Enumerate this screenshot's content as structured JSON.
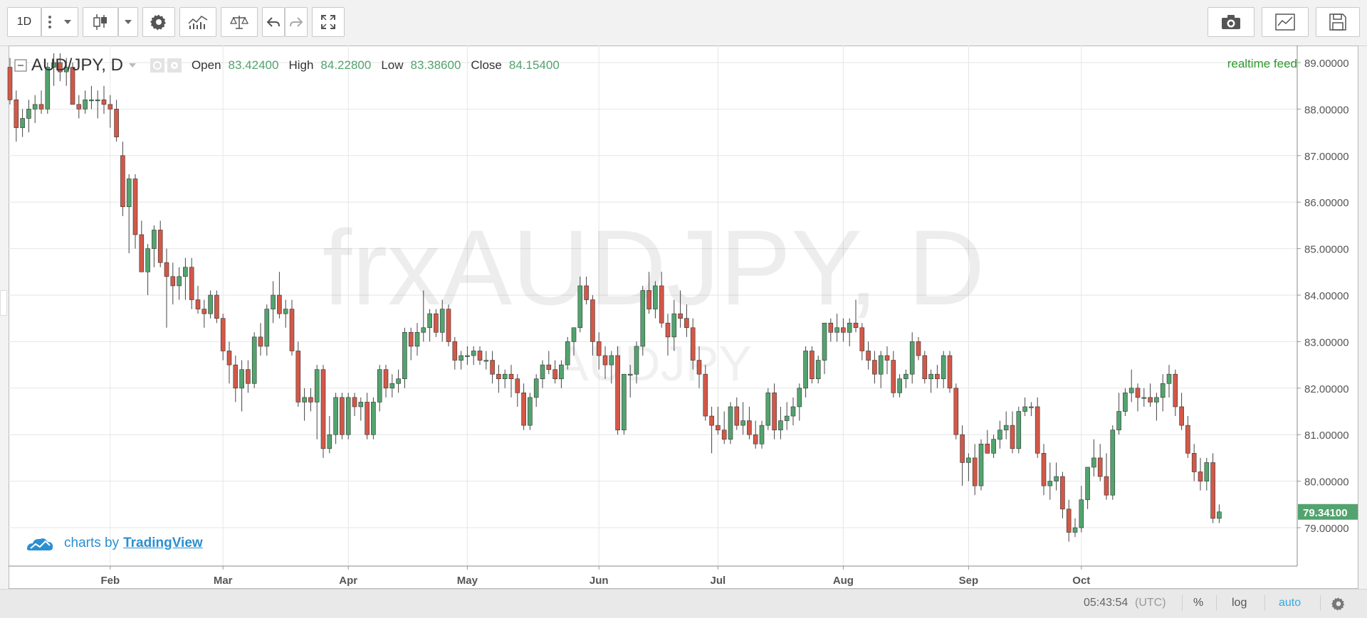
{
  "toolbar": {
    "interval_label": "1D",
    "icons": [
      "more-icon",
      "dropdown-icon",
      "candles-icon",
      "dropdown-icon",
      "gear-icon",
      "indicators-icon",
      "compare-icon",
      "undo-icon",
      "redo-icon",
      "fullscreen-icon",
      "camera-icon",
      "chart-icon",
      "save-icon"
    ]
  },
  "legend": {
    "symbol": "AUD/JPY, D",
    "open_label": "Open",
    "open_value": "83.42400",
    "high_label": "High",
    "high_value": "84.22800",
    "low_label": "Low",
    "low_value": "83.38600",
    "close_label": "Close",
    "close_value": "84.15400"
  },
  "watermark": {
    "main": "frxAUDJPY, D",
    "sub": "AUDJPY"
  },
  "realtime_label": "realtime feed",
  "branding": {
    "prefix": "charts by",
    "brand": "TradingView"
  },
  "last_price_label": "79.34100",
  "bottom_bar": {
    "time": "05:43:54",
    "tz": "(UTC)",
    "percent": "%",
    "log": "log",
    "auto": "auto"
  },
  "colors": {
    "up": "#53a36f",
    "down": "#d35848",
    "accent": "#2b8fd0",
    "realtime": "#2c9b2c"
  },
  "chart_data": {
    "type": "candlestick",
    "title": "AUD/JPY, D",
    "ylim": [
      78.2,
      89.3
    ],
    "y_ticks": [
      "89.00000",
      "88.00000",
      "87.00000",
      "86.00000",
      "85.00000",
      "84.00000",
      "83.00000",
      "82.00000",
      "81.00000",
      "80.00000",
      "79.00000"
    ],
    "y_tick_values": [
      89,
      88,
      87,
      86,
      85,
      84,
      83,
      82,
      81,
      80,
      79
    ],
    "x_tick_labels": [
      "Feb",
      "Mar",
      "Apr",
      "May",
      "Jun",
      "Jul",
      "Aug",
      "Sep",
      "Oct"
    ],
    "x_tick_index": [
      16,
      34,
      54,
      73,
      94,
      113,
      133,
      153,
      171
    ],
    "grid": true,
    "candles": [
      [
        88.9,
        89.1,
        88.1,
        88.2
      ],
      [
        88.2,
        88.4,
        87.3,
        87.6
      ],
      [
        87.6,
        88.0,
        87.4,
        87.8
      ],
      [
        87.8,
        88.2,
        87.5,
        88.0
      ],
      [
        88.0,
        88.3,
        87.7,
        88.1
      ],
      [
        88.1,
        88.4,
        87.9,
        88.0
      ],
      [
        88.0,
        89.0,
        87.9,
        88.9
      ],
      [
        88.9,
        89.2,
        88.5,
        89.0
      ],
      [
        89.0,
        89.2,
        88.6,
        88.8
      ],
      [
        88.8,
        89.1,
        88.5,
        88.9
      ],
      [
        88.9,
        89.0,
        88.2,
        88.1
      ],
      [
        88.1,
        88.3,
        87.8,
        88.0
      ],
      [
        88.0,
        88.4,
        87.9,
        88.2
      ],
      [
        88.2,
        88.5,
        88.0,
        88.2
      ],
      [
        88.2,
        88.4,
        87.8,
        88.2
      ],
      [
        88.2,
        88.5,
        87.9,
        88.1
      ],
      [
        88.1,
        88.3,
        87.6,
        88.0
      ],
      [
        88.0,
        88.2,
        87.3,
        87.4
      ],
      [
        87.0,
        87.3,
        85.7,
        85.9
      ],
      [
        85.9,
        86.6,
        84.9,
        86.5
      ],
      [
        86.5,
        86.6,
        85.0,
        85.3
      ],
      [
        85.3,
        85.6,
        84.5,
        84.5
      ],
      [
        84.5,
        85.1,
        84.0,
        85.0
      ],
      [
        85.0,
        85.5,
        84.6,
        85.4
      ],
      [
        85.4,
        85.6,
        84.6,
        84.7
      ],
      [
        84.7,
        85.0,
        83.3,
        84.4
      ],
      [
        84.4,
        84.7,
        83.8,
        84.2
      ],
      [
        84.2,
        84.6,
        83.9,
        84.4
      ],
      [
        84.4,
        84.8,
        83.9,
        84.6
      ],
      [
        84.6,
        84.8,
        83.7,
        83.9
      ],
      [
        83.9,
        84.2,
        83.6,
        83.7
      ],
      [
        83.7,
        83.9,
        83.3,
        83.6
      ],
      [
        83.6,
        84.1,
        83.5,
        84.0
      ],
      [
        84.0,
        84.1,
        83.4,
        83.5
      ],
      [
        83.5,
        83.6,
        82.6,
        82.8
      ],
      [
        82.8,
        83.0,
        82.1,
        82.5
      ],
      [
        82.5,
        82.7,
        81.7,
        82.0
      ],
      [
        82.0,
        82.6,
        81.5,
        82.4
      ],
      [
        82.4,
        82.6,
        81.9,
        82.1
      ],
      [
        82.1,
        83.2,
        82.0,
        83.1
      ],
      [
        83.1,
        83.4,
        82.7,
        82.9
      ],
      [
        82.9,
        83.8,
        82.7,
        83.7
      ],
      [
        83.7,
        84.3,
        83.4,
        84.0
      ],
      [
        84.0,
        84.5,
        83.5,
        83.6
      ],
      [
        83.6,
        83.9,
        83.3,
        83.7
      ],
      [
        83.7,
        83.9,
        82.7,
        82.8
      ],
      [
        82.8,
        83.0,
        81.6,
        81.7
      ],
      [
        81.7,
        82.0,
        81.3,
        81.8
      ],
      [
        81.8,
        82.0,
        81.5,
        81.7
      ],
      [
        81.7,
        82.5,
        80.9,
        82.4
      ],
      [
        82.4,
        82.5,
        80.5,
        80.7
      ],
      [
        80.7,
        81.4,
        80.6,
        81.0
      ],
      [
        81.0,
        81.9,
        80.8,
        81.8
      ],
      [
        81.8,
        81.9,
        80.9,
        81.0
      ],
      [
        81.0,
        81.9,
        80.9,
        81.8
      ],
      [
        81.8,
        81.9,
        81.4,
        81.6
      ],
      [
        81.6,
        81.8,
        81.3,
        81.7
      ],
      [
        81.7,
        81.9,
        80.9,
        81.0
      ],
      [
        81.0,
        81.8,
        80.9,
        81.7
      ],
      [
        81.7,
        82.5,
        81.5,
        82.4
      ],
      [
        82.4,
        82.5,
        81.8,
        82.0
      ],
      [
        82.0,
        82.3,
        81.8,
        82.1
      ],
      [
        82.1,
        82.4,
        81.9,
        82.2
      ],
      [
        82.2,
        83.3,
        82.0,
        83.2
      ],
      [
        83.2,
        83.3,
        82.6,
        82.9
      ],
      [
        82.9,
        83.4,
        82.7,
        83.2
      ],
      [
        83.2,
        84.1,
        83.0,
        83.3
      ],
      [
        83.3,
        83.7,
        83.0,
        83.6
      ],
      [
        83.6,
        83.7,
        83.1,
        83.2
      ],
      [
        83.2,
        83.9,
        83.0,
        83.7
      ],
      [
        83.7,
        83.8,
        82.9,
        83.0
      ],
      [
        83.0,
        83.1,
        82.4,
        82.6
      ],
      [
        82.6,
        82.8,
        82.4,
        82.7
      ],
      [
        82.7,
        82.9,
        82.5,
        82.7
      ],
      [
        82.7,
        82.9,
        82.5,
        82.8
      ],
      [
        82.8,
        82.9,
        82.5,
        82.6
      ],
      [
        82.6,
        82.8,
        82.4,
        82.6
      ],
      [
        82.6,
        82.8,
        82.1,
        82.3
      ],
      [
        82.3,
        82.5,
        81.9,
        82.2
      ],
      [
        82.2,
        82.4,
        82.0,
        82.3
      ],
      [
        82.3,
        82.5,
        81.8,
        82.2
      ],
      [
        82.2,
        82.3,
        81.6,
        81.9
      ],
      [
        81.9,
        82.1,
        81.1,
        81.2
      ],
      [
        81.2,
        81.9,
        81.1,
        81.8
      ],
      [
        81.8,
        82.3,
        81.6,
        82.2
      ],
      [
        82.2,
        82.6,
        82.0,
        82.5
      ],
      [
        82.5,
        82.8,
        82.3,
        82.4
      ],
      [
        82.4,
        82.6,
        82.1,
        82.2
      ],
      [
        82.2,
        82.6,
        82.0,
        82.5
      ],
      [
        82.5,
        83.1,
        82.4,
        83.0
      ],
      [
        83.0,
        83.3,
        82.7,
        83.3
      ],
      [
        83.3,
        84.4,
        83.2,
        84.2
      ],
      [
        84.2,
        84.4,
        83.8,
        83.9
      ],
      [
        83.9,
        84.0,
        82.7,
        83.0
      ],
      [
        83.0,
        83.2,
        82.4,
        82.7
      ],
      [
        82.7,
        82.9,
        82.2,
        82.5
      ],
      [
        82.5,
        82.8,
        82.1,
        82.7
      ],
      [
        82.7,
        82.9,
        81.0,
        81.1
      ],
      [
        81.1,
        82.3,
        81.0,
        82.3
      ],
      [
        82.3,
        82.5,
        81.8,
        82.3
      ],
      [
        82.3,
        83.0,
        82.1,
        82.9
      ],
      [
        82.9,
        84.2,
        82.7,
        84.1
      ],
      [
        84.1,
        84.5,
        83.6,
        83.7
      ],
      [
        83.7,
        84.3,
        83.5,
        84.2
      ],
      [
        84.2,
        84.5,
        83.3,
        83.4
      ],
      [
        83.4,
        83.6,
        82.7,
        83.1
      ],
      [
        83.1,
        83.9,
        82.8,
        83.6
      ],
      [
        83.6,
        84.1,
        83.3,
        83.5
      ],
      [
        83.5,
        83.8,
        83.1,
        83.3
      ],
      [
        83.3,
        83.5,
        82.4,
        82.6
      ],
      [
        82.6,
        82.9,
        82.0,
        82.3
      ],
      [
        82.3,
        82.5,
        81.3,
        81.4
      ],
      [
        81.4,
        81.6,
        80.6,
        81.2
      ],
      [
        81.2,
        81.6,
        81.0,
        81.1
      ],
      [
        81.1,
        81.5,
        80.8,
        80.9
      ],
      [
        80.9,
        81.7,
        80.8,
        81.6
      ],
      [
        81.6,
        81.8,
        81.1,
        81.2
      ],
      [
        81.2,
        81.7,
        81.0,
        81.3
      ],
      [
        81.3,
        81.6,
        80.9,
        81.0
      ],
      [
        81.0,
        81.3,
        80.7,
        80.8
      ],
      [
        80.8,
        81.3,
        80.7,
        81.2
      ],
      [
        81.2,
        82.0,
        81.1,
        81.9
      ],
      [
        81.9,
        82.1,
        80.9,
        81.1
      ],
      [
        81.1,
        81.6,
        80.9,
        81.3
      ],
      [
        81.3,
        81.7,
        81.1,
        81.4
      ],
      [
        81.4,
        81.8,
        81.2,
        81.6
      ],
      [
        81.6,
        82.1,
        81.3,
        82.0
      ],
      [
        82.0,
        82.9,
        81.8,
        82.8
      ],
      [
        82.8,
        82.9,
        82.1,
        82.2
      ],
      [
        82.2,
        82.7,
        82.1,
        82.6
      ],
      [
        82.6,
        83.4,
        82.3,
        83.4
      ],
      [
        83.4,
        83.5,
        83.0,
        83.2
      ],
      [
        83.2,
        83.6,
        83.0,
        83.3
      ],
      [
        83.3,
        83.5,
        83.0,
        83.2
      ],
      [
        83.2,
        83.5,
        82.9,
        83.4
      ],
      [
        83.4,
        83.9,
        83.2,
        83.3
      ],
      [
        83.3,
        83.4,
        82.6,
        82.8
      ],
      [
        82.8,
        83.0,
        82.4,
        82.6
      ],
      [
        82.6,
        82.8,
        82.1,
        82.3
      ],
      [
        82.3,
        82.8,
        82.0,
        82.7
      ],
      [
        82.7,
        82.9,
        82.3,
        82.6
      ],
      [
        82.6,
        82.8,
        81.8,
        81.9
      ],
      [
        81.9,
        82.3,
        81.8,
        82.2
      ],
      [
        82.2,
        82.4,
        82.0,
        82.3
      ],
      [
        82.3,
        83.2,
        82.1,
        83.0
      ],
      [
        83.0,
        83.1,
        82.6,
        82.7
      ],
      [
        82.7,
        82.8,
        82.1,
        82.2
      ],
      [
        82.2,
        82.4,
        81.9,
        82.3
      ],
      [
        82.3,
        82.5,
        82.0,
        82.2
      ],
      [
        82.2,
        82.8,
        82.0,
        82.7
      ],
      [
        82.7,
        82.8,
        81.9,
        82.0
      ],
      [
        82.0,
        82.1,
        80.9,
        81.0
      ],
      [
        81.0,
        81.2,
        79.9,
        80.4
      ],
      [
        80.4,
        80.6,
        80.0,
        80.5
      ],
      [
        80.5,
        80.8,
        79.7,
        79.9
      ],
      [
        79.9,
        80.9,
        79.8,
        80.8
      ],
      [
        80.8,
        81.1,
        80.6,
        80.6
      ],
      [
        80.6,
        81.0,
        80.5,
        80.9
      ],
      [
        80.9,
        81.3,
        80.7,
        81.1
      ],
      [
        81.1,
        81.5,
        80.9,
        81.2
      ],
      [
        81.2,
        81.5,
        80.6,
        80.7
      ],
      [
        80.7,
        81.6,
        80.6,
        81.5
      ],
      [
        81.5,
        81.8,
        81.4,
        81.6
      ],
      [
        81.6,
        81.7,
        81.4,
        81.6
      ],
      [
        81.6,
        81.8,
        80.5,
        80.6
      ],
      [
        80.6,
        80.8,
        79.7,
        79.9
      ],
      [
        79.9,
        80.4,
        79.6,
        80.0
      ],
      [
        80.0,
        80.4,
        79.8,
        80.1
      ],
      [
        80.1,
        80.2,
        79.2,
        79.4
      ],
      [
        79.4,
        79.6,
        78.7,
        78.9
      ],
      [
        78.9,
        79.2,
        78.8,
        79.0
      ],
      [
        79.0,
        79.9,
        78.9,
        79.6
      ],
      [
        79.6,
        80.3,
        79.4,
        80.3
      ],
      [
        80.3,
        80.9,
        80.1,
        80.5
      ],
      [
        80.5,
        80.8,
        80.0,
        80.1
      ],
      [
        80.1,
        80.6,
        79.6,
        79.7
      ],
      [
        79.7,
        81.2,
        79.6,
        81.1
      ],
      [
        81.1,
        81.9,
        81.0,
        81.5
      ],
      [
        81.5,
        82.0,
        81.4,
        81.9
      ],
      [
        81.9,
        82.4,
        81.7,
        82.0
      ],
      [
        82.0,
        82.1,
        81.5,
        81.8
      ],
      [
        81.8,
        82.0,
        81.6,
        81.8
      ],
      [
        81.8,
        82.1,
        81.6,
        81.7
      ],
      [
        81.7,
        81.9,
        81.3,
        81.8
      ],
      [
        81.8,
        82.3,
        81.5,
        82.1
      ],
      [
        82.1,
        82.5,
        81.8,
        82.3
      ],
      [
        82.3,
        82.4,
        81.4,
        81.6
      ],
      [
        81.6,
        81.9,
        81.1,
        81.2
      ],
      [
        81.2,
        81.4,
        80.5,
        80.6
      ],
      [
        80.6,
        80.8,
        80.0,
        80.2
      ],
      [
        80.2,
        80.5,
        79.8,
        80.0
      ],
      [
        80.0,
        80.5,
        79.8,
        80.4
      ],
      [
        80.4,
        80.6,
        79.1,
        79.2
      ],
      [
        79.2,
        79.5,
        79.1,
        79.34
      ]
    ]
  }
}
